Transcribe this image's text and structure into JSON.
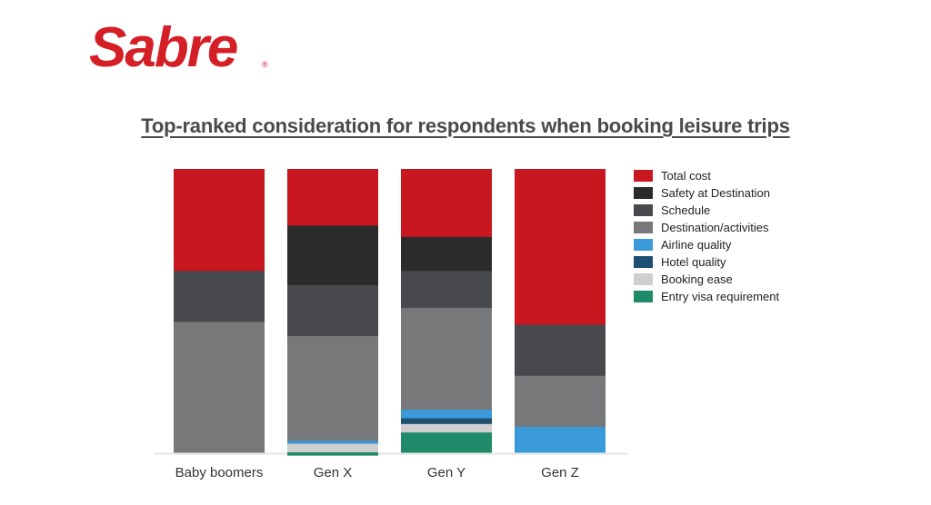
{
  "logo": {
    "text": "Sabre",
    "registered": "®"
  },
  "chart_data": {
    "type": "bar",
    "stacked": true,
    "title": "Top-ranked consideration for respondents when booking leisure trips",
    "categories": [
      "Baby boomers",
      "Gen X",
      "Gen Y",
      "Gen Z"
    ],
    "ylim": [
      0,
      100
    ],
    "legend_position": "right",
    "series": [
      {
        "name": "Total cost",
        "color": "#c8171f",
        "values": [
          36,
          20,
          24,
          55
        ]
      },
      {
        "name": "Safety at Destination",
        "color": "#2b2b2b",
        "values": [
          0,
          21,
          12,
          0
        ]
      },
      {
        "name": "Schedule",
        "color": "#47494c",
        "values": [
          18,
          18,
          13,
          18
        ]
      },
      {
        "name": "Destination/activities",
        "color": "#77787a",
        "values": [
          46,
          37,
          36,
          18
        ]
      },
      {
        "name": "Airline quality",
        "color": "#3a9ad9",
        "values": [
          0,
          1,
          3,
          9
        ]
      },
      {
        "name": "Hotel quality",
        "color": "#1d4f70",
        "values": [
          0,
          0,
          2,
          0
        ]
      },
      {
        "name": "Booking ease",
        "color": "#cfcfcf",
        "values": [
          0,
          3,
          3,
          0
        ]
      },
      {
        "name": "Entry visa requirement",
        "color": "#1f8a6a",
        "values": [
          0,
          1,
          7,
          0
        ]
      }
    ]
  }
}
